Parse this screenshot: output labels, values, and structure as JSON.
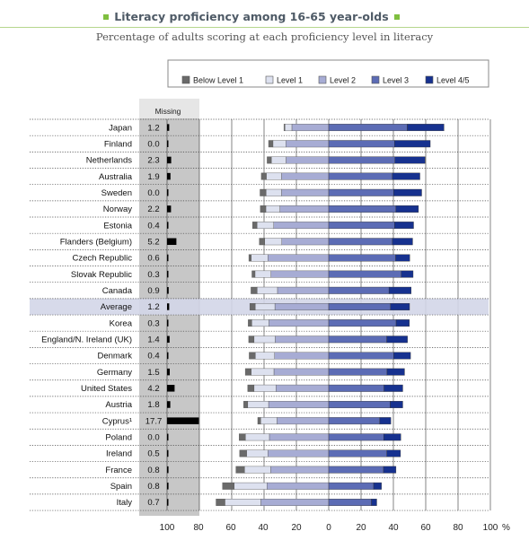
{
  "title": "Literacy proficiency among 16-65 year-olds",
  "subtitle": "Percentage of adults scoring at each proficiency level in literacy",
  "chart_data": {
    "type": "bar",
    "orientation": "horizontal-stacked-diverging",
    "legend": [
      "Below Level 1",
      "Level 1",
      "Level 2",
      "Level 3",
      "Level 4/5"
    ],
    "legend_placement": "top",
    "missing_header": "Missing",
    "xaxis_ticks": [
      "100",
      "80",
      "60",
      "40",
      "20",
      "0",
      "20",
      "40",
      "60",
      "80",
      "100"
    ],
    "xaxis_unit": "%",
    "colors": {
      "below1": "#6a6a6a",
      "level1": "#dde1ef",
      "level2": "#a7acd4",
      "level3": "#5c6cb5",
      "level45": "#16318f",
      "missing_bar": "#000000",
      "missing_column": "#c7c7c7",
      "average_highlight": "#d3d6e8"
    },
    "rows": [
      {
        "country": "Japan",
        "missing": "1.2",
        "m": 1.2,
        "below1": 0.6,
        "level1": 4.3,
        "level2": 22.8,
        "level3": 48.6,
        "level45": 22.7
      },
      {
        "country": "Finland",
        "missing": "0.0",
        "m": 0.0,
        "below1": 2.7,
        "level1": 8.0,
        "level2": 26.5,
        "level3": 40.7,
        "level45": 22.1
      },
      {
        "country": "Netherlands",
        "missing": "2.3",
        "m": 2.3,
        "below1": 2.6,
        "level1": 9.1,
        "level2": 26.4,
        "level3": 41.0,
        "level45": 18.6
      },
      {
        "country": "Australia",
        "missing": "1.9",
        "m": 1.9,
        "below1": 3.1,
        "level1": 9.4,
        "level2": 29.2,
        "level3": 39.4,
        "level45": 17.0
      },
      {
        "country": "Sweden",
        "missing": "0.0",
        "m": 0.0,
        "below1": 3.7,
        "level1": 9.6,
        "level2": 29.2,
        "level3": 40.1,
        "level45": 17.4
      },
      {
        "country": "Norway",
        "missing": "2.2",
        "m": 2.2,
        "below1": 3.4,
        "level1": 8.7,
        "level2": 30.2,
        "level3": 41.6,
        "level45": 13.9
      },
      {
        "country": "Estonia",
        "missing": "0.4",
        "m": 0.4,
        "below1": 2.7,
        "level1": 10.4,
        "level2": 34.0,
        "level3": 40.7,
        "level45": 11.8
      },
      {
        "country": "Flanders (Belgium)",
        "missing": "5.2",
        "m": 5.2,
        "below1": 3.3,
        "level1": 10.6,
        "level2": 29.0,
        "level3": 39.4,
        "level45": 12.5
      },
      {
        "country": "Czech Republic",
        "missing": "0.6",
        "m": 0.6,
        "below1": 1.5,
        "level1": 10.3,
        "level2": 37.6,
        "level3": 41.4,
        "level45": 8.7
      },
      {
        "country": "Slovak Republic",
        "missing": "0.3",
        "m": 0.3,
        "below1": 1.9,
        "level1": 9.9,
        "level2": 35.7,
        "level3": 44.9,
        "level45": 7.3
      },
      {
        "country": "Canada",
        "missing": "0.9",
        "m": 0.9,
        "below1": 3.8,
        "level1": 12.6,
        "level2": 31.7,
        "level3": 37.3,
        "level45": 13.7
      },
      {
        "country": "Average",
        "missing": "1.2",
        "m": 1.2,
        "below1": 3.3,
        "level1": 12.2,
        "level2": 33.3,
        "level3": 38.2,
        "level45": 11.8
      },
      {
        "country": "Korea",
        "missing": "0.3",
        "m": 0.3,
        "below1": 2.2,
        "level1": 10.6,
        "level2": 37.0,
        "level3": 41.7,
        "level45": 8.2
      },
      {
        "country": "England/N. Ireland (UK)",
        "missing": "1.4",
        "m": 1.4,
        "below1": 3.3,
        "level1": 13.1,
        "level2": 33.1,
        "level3": 35.9,
        "level45": 12.8
      },
      {
        "country": "Denmark",
        "missing": "0.4",
        "m": 0.4,
        "below1": 3.8,
        "level1": 11.9,
        "level2": 33.5,
        "level3": 40.2,
        "level45": 10.4
      },
      {
        "country": "Germany",
        "missing": "1.5",
        "m": 1.5,
        "below1": 3.6,
        "level1": 14.1,
        "level2": 33.9,
        "level3": 36.1,
        "level45": 10.8
      },
      {
        "country": "United States",
        "missing": "4.2",
        "m": 4.2,
        "below1": 3.9,
        "level1": 13.6,
        "level2": 32.6,
        "level3": 34.2,
        "level45": 11.6
      },
      {
        "country": "Austria",
        "missing": "1.8",
        "m": 1.8,
        "below1": 2.5,
        "level1": 12.9,
        "level2": 37.2,
        "level3": 38.0,
        "level45": 7.8
      },
      {
        "country": "Cyprus¹",
        "missing": "17.7",
        "m": 17.7,
        "below1": 1.8,
        "level1": 10.1,
        "level2": 32.0,
        "level3": 31.6,
        "level45": 6.8
      },
      {
        "country": "Poland",
        "missing": "0.0",
        "m": 0.0,
        "below1": 3.9,
        "level1": 14.8,
        "level2": 36.7,
        "level3": 34.0,
        "level45": 10.6
      },
      {
        "country": "Ireland",
        "missing": "0.5",
        "m": 0.5,
        "below1": 4.3,
        "level1": 13.2,
        "level2": 37.6,
        "level3": 36.0,
        "level45": 8.4
      },
      {
        "country": "France",
        "missing": "0.8",
        "m": 0.8,
        "below1": 5.3,
        "level1": 16.2,
        "level2": 35.9,
        "level3": 33.9,
        "level45": 7.7
      },
      {
        "country": "Spain",
        "missing": "0.8",
        "m": 0.8,
        "below1": 7.2,
        "level1": 20.3,
        "level2": 38.2,
        "level3": 27.8,
        "level45": 4.8
      },
      {
        "country": "Italy",
        "missing": "0.7",
        "m": 0.7,
        "below1": 5.5,
        "level1": 22.2,
        "level2": 42.0,
        "level3": 26.4,
        "level45": 3.3
      }
    ]
  }
}
